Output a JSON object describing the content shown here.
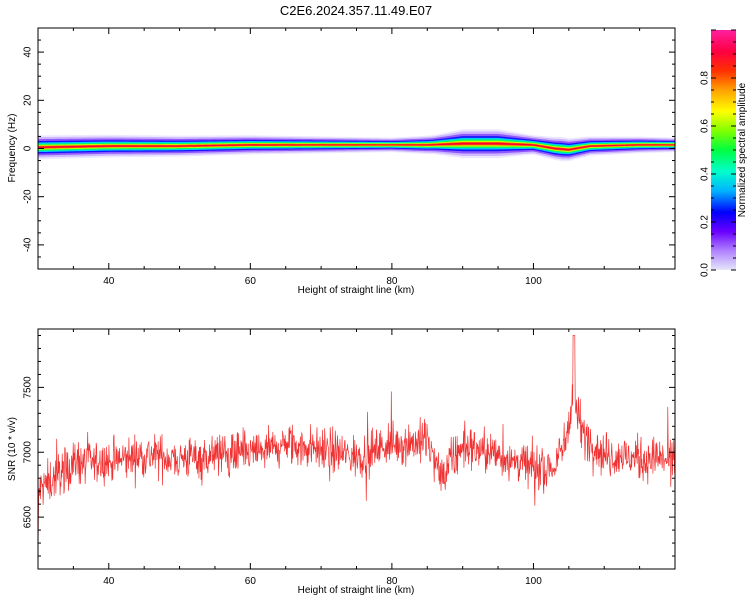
{
  "title": "C2E6.2024.357.11.49.E07",
  "chart_data": [
    {
      "type": "heatmap",
      "xlabel": "Height of straight line (km)",
      "ylabel": "Frequency (Hz)",
      "xlim": [
        30,
        120
      ],
      "ylim": [
        -50,
        50
      ],
      "xticks": [
        40,
        60,
        80,
        100
      ],
      "yticks": [
        -40,
        -20,
        0,
        20,
        40
      ],
      "colorbar": {
        "label": "Normalized spectral amplitude",
        "range": [
          0.0,
          1.0
        ],
        "ticks": [
          0.0,
          0.2,
          0.4,
          0.6,
          0.8
        ],
        "tick_labels": [
          "0.0",
          "0.2",
          "0.4",
          "0.6",
          "0.8"
        ]
      },
      "band_center_hz": [
        [
          30,
          0.5
        ],
        [
          40,
          1.0
        ],
        [
          50,
          1.0
        ],
        [
          60,
          1.5
        ],
        [
          70,
          1.5
        ],
        [
          80,
          1.5
        ],
        [
          85,
          1.5
        ],
        [
          90,
          2.0
        ],
        [
          95,
          2.0
        ],
        [
          100,
          1.5
        ],
        [
          103,
          0.0
        ],
        [
          105,
          -0.5
        ],
        [
          108,
          1.0
        ],
        [
          115,
          1.5
        ],
        [
          120,
          1.5
        ]
      ],
      "band_halfwidth_hz": [
        [
          30,
          5
        ],
        [
          60,
          4
        ],
        [
          80,
          3
        ],
        [
          86,
          4
        ],
        [
          90,
          6
        ],
        [
          95,
          6
        ],
        [
          100,
          4
        ],
        [
          104,
          5
        ],
        [
          108,
          4
        ],
        [
          120,
          3
        ]
      ],
      "grid": false
    },
    {
      "type": "line",
      "xlabel": "Height of straight line (km)",
      "ylabel": "SNR (10 * v/v)",
      "xlim": [
        30,
        120
      ],
      "ylim": [
        6100,
        7950
      ],
      "xticks": [
        40,
        60,
        80,
        100
      ],
      "yticks": [
        6500,
        7000,
        7500
      ],
      "color": "#f03232",
      "mean_snr": [
        [
          30,
          6700
        ],
        [
          35,
          6920
        ],
        [
          40,
          6920
        ],
        [
          45,
          6980
        ],
        [
          50,
          6950
        ],
        [
          55,
          6980
        ],
        [
          60,
          6990
        ],
        [
          65,
          7050
        ],
        [
          70,
          7030
        ],
        [
          75,
          6960
        ],
        [
          80,
          7070
        ],
        [
          85,
          7080
        ],
        [
          87,
          6800
        ],
        [
          90,
          7050
        ],
        [
          95,
          6980
        ],
        [
          100,
          6880
        ],
        [
          103,
          6880
        ],
        [
          104.5,
          7080
        ],
        [
          105.5,
          7450
        ],
        [
          107,
          7150
        ],
        [
          110,
          6980
        ],
        [
          115,
          6950
        ],
        [
          120,
          6950
        ]
      ],
      "peak": {
        "x": 105.7,
        "y": 7900
      },
      "noise_amplitude": 220,
      "grid": false
    }
  ]
}
